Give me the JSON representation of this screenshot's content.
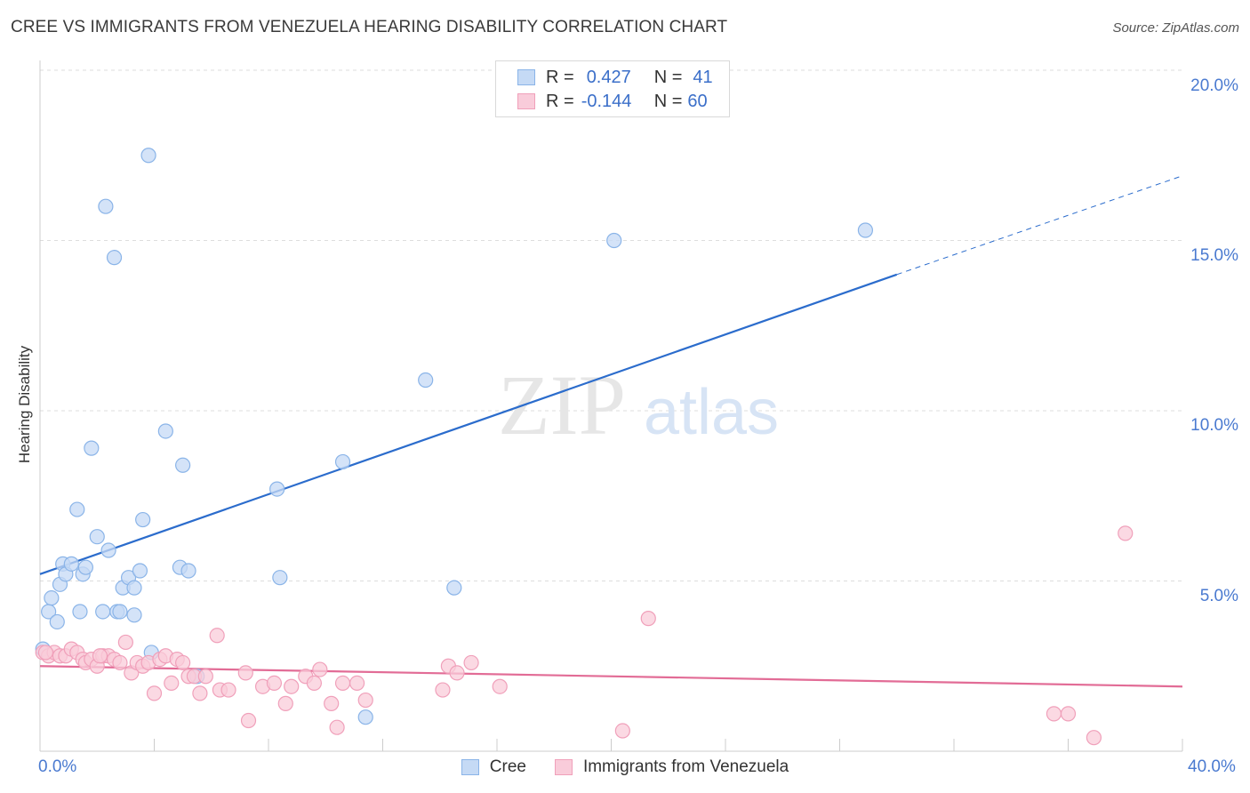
{
  "chart_data": {
    "type": "scatter",
    "title": "CREE VS IMMIGRANTS FROM VENEZUELA HEARING DISABILITY CORRELATION CHART",
    "source": "Source: ZipAtlas.com",
    "ylabel": "Hearing Disability",
    "xlim": [
      0,
      40
    ],
    "ylim": [
      0,
      20
    ],
    "x_tick_labels": [
      "0.0%",
      "40.0%"
    ],
    "y_ticks": [
      5,
      10,
      15,
      20
    ],
    "y_tick_labels": [
      "5.0%",
      "10.0%",
      "15.0%",
      "20.0%"
    ],
    "watermark": {
      "zip": "ZIP",
      "atlas": "atlas"
    },
    "legend": {
      "r_label": "R =",
      "n_label": "N =",
      "rows": [
        {
          "r": "0.427",
          "n": "41"
        },
        {
          "r": "-0.144",
          "n": "60"
        }
      ]
    },
    "series": [
      {
        "name": "Cree",
        "color": "#8ab4e8",
        "fill": "#c5daf5",
        "line_color": "#2b6ccc",
        "trend": {
          "x0": 0,
          "y0": 5.2,
          "x1": 30,
          "y1": 14.0,
          "x_dash_end": 40,
          "y_dash_end": 16.9
        },
        "points": [
          [
            0.3,
            4.1
          ],
          [
            0.4,
            4.5
          ],
          [
            0.6,
            3.8
          ],
          [
            0.7,
            4.9
          ],
          [
            0.8,
            5.5
          ],
          [
            0.9,
            5.2
          ],
          [
            1.1,
            5.5
          ],
          [
            1.3,
            7.1
          ],
          [
            1.4,
            4.1
          ],
          [
            1.5,
            5.2
          ],
          [
            1.6,
            5.4
          ],
          [
            1.8,
            8.9
          ],
          [
            2.0,
            6.3
          ],
          [
            2.2,
            4.1
          ],
          [
            2.3,
            16.0
          ],
          [
            2.4,
            5.9
          ],
          [
            2.6,
            14.5
          ],
          [
            2.7,
            4.1
          ],
          [
            2.8,
            4.1
          ],
          [
            2.9,
            4.8
          ],
          [
            3.1,
            5.1
          ],
          [
            3.3,
            4.8
          ],
          [
            3.3,
            4.0
          ],
          [
            3.5,
            5.3
          ],
          [
            3.6,
            6.8
          ],
          [
            3.8,
            17.5
          ],
          [
            3.9,
            2.9
          ],
          [
            4.4,
            9.4
          ],
          [
            4.9,
            5.4
          ],
          [
            5.0,
            8.4
          ],
          [
            5.2,
            5.3
          ],
          [
            5.5,
            2.2
          ],
          [
            8.3,
            7.7
          ],
          [
            8.4,
            5.1
          ],
          [
            10.6,
            8.5
          ],
          [
            11.4,
            1.0
          ],
          [
            13.5,
            10.9
          ],
          [
            14.5,
            4.8
          ],
          [
            20.1,
            15.0
          ],
          [
            28.9,
            15.3
          ],
          [
            0.1,
            3.0
          ]
        ]
      },
      {
        "name": "Immigrants from Venezuela",
        "color": "#f0a0ba",
        "fill": "#f9ccda",
        "line_color": "#e26c96",
        "trend": {
          "x0": 0,
          "y0": 2.5,
          "x1": 40,
          "y1": 1.9
        },
        "points": [
          [
            0.1,
            2.9
          ],
          [
            0.3,
            2.8
          ],
          [
            0.5,
            2.9
          ],
          [
            0.7,
            2.8
          ],
          [
            0.9,
            2.8
          ],
          [
            1.1,
            3.0
          ],
          [
            1.3,
            2.9
          ],
          [
            1.5,
            2.7
          ],
          [
            1.6,
            2.6
          ],
          [
            1.8,
            2.7
          ],
          [
            2.0,
            2.5
          ],
          [
            2.2,
            2.8
          ],
          [
            2.4,
            2.8
          ],
          [
            2.6,
            2.7
          ],
          [
            2.8,
            2.6
          ],
          [
            3.0,
            3.2
          ],
          [
            3.2,
            2.3
          ],
          [
            3.4,
            2.6
          ],
          [
            3.6,
            2.5
          ],
          [
            3.8,
            2.6
          ],
          [
            4.0,
            1.7
          ],
          [
            4.2,
            2.7
          ],
          [
            4.4,
            2.8
          ],
          [
            4.6,
            2.0
          ],
          [
            4.8,
            2.7
          ],
          [
            5.0,
            2.6
          ],
          [
            5.2,
            2.2
          ],
          [
            5.4,
            2.2
          ],
          [
            5.6,
            1.7
          ],
          [
            5.8,
            2.2
          ],
          [
            6.2,
            3.4
          ],
          [
            6.3,
            1.8
          ],
          [
            6.6,
            1.8
          ],
          [
            7.2,
            2.3
          ],
          [
            7.3,
            0.9
          ],
          [
            7.8,
            1.9
          ],
          [
            8.2,
            2.0
          ],
          [
            8.6,
            1.4
          ],
          [
            8.8,
            1.9
          ],
          [
            9.3,
            2.2
          ],
          [
            9.6,
            2.0
          ],
          [
            9.8,
            2.4
          ],
          [
            10.2,
            1.4
          ],
          [
            10.4,
            0.7
          ],
          [
            10.6,
            2.0
          ],
          [
            11.1,
            2.0
          ],
          [
            11.4,
            1.5
          ],
          [
            14.1,
            1.8
          ],
          [
            14.3,
            2.5
          ],
          [
            14.6,
            2.3
          ],
          [
            15.1,
            2.6
          ],
          [
            16.1,
            1.9
          ],
          [
            20.4,
            0.6
          ],
          [
            21.3,
            3.9
          ],
          [
            35.5,
            1.1
          ],
          [
            36.0,
            1.1
          ],
          [
            36.9,
            0.4
          ],
          [
            38.0,
            6.4
          ],
          [
            0.2,
            2.9
          ],
          [
            2.1,
            2.8
          ]
        ]
      }
    ]
  }
}
